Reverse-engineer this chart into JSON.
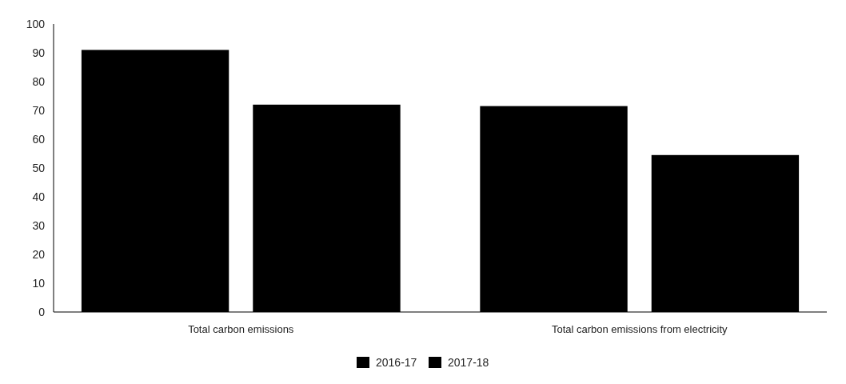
{
  "chart_data": {
    "type": "bar",
    "categories": [
      "Total carbon emissions",
      "Total carbon emissions from electricity"
    ],
    "series": [
      {
        "name": "2016-17",
        "color": "#000000",
        "values": [
          91,
          71.5
        ]
      },
      {
        "name": "2017-18",
        "color": "#000000",
        "values": [
          72,
          54.5
        ]
      }
    ],
    "ylim": [
      0,
      100
    ],
    "yticks": [
      0,
      10,
      20,
      30,
      40,
      50,
      60,
      70,
      80,
      90,
      100
    ],
    "grid": false,
    "legend": "bottom"
  }
}
